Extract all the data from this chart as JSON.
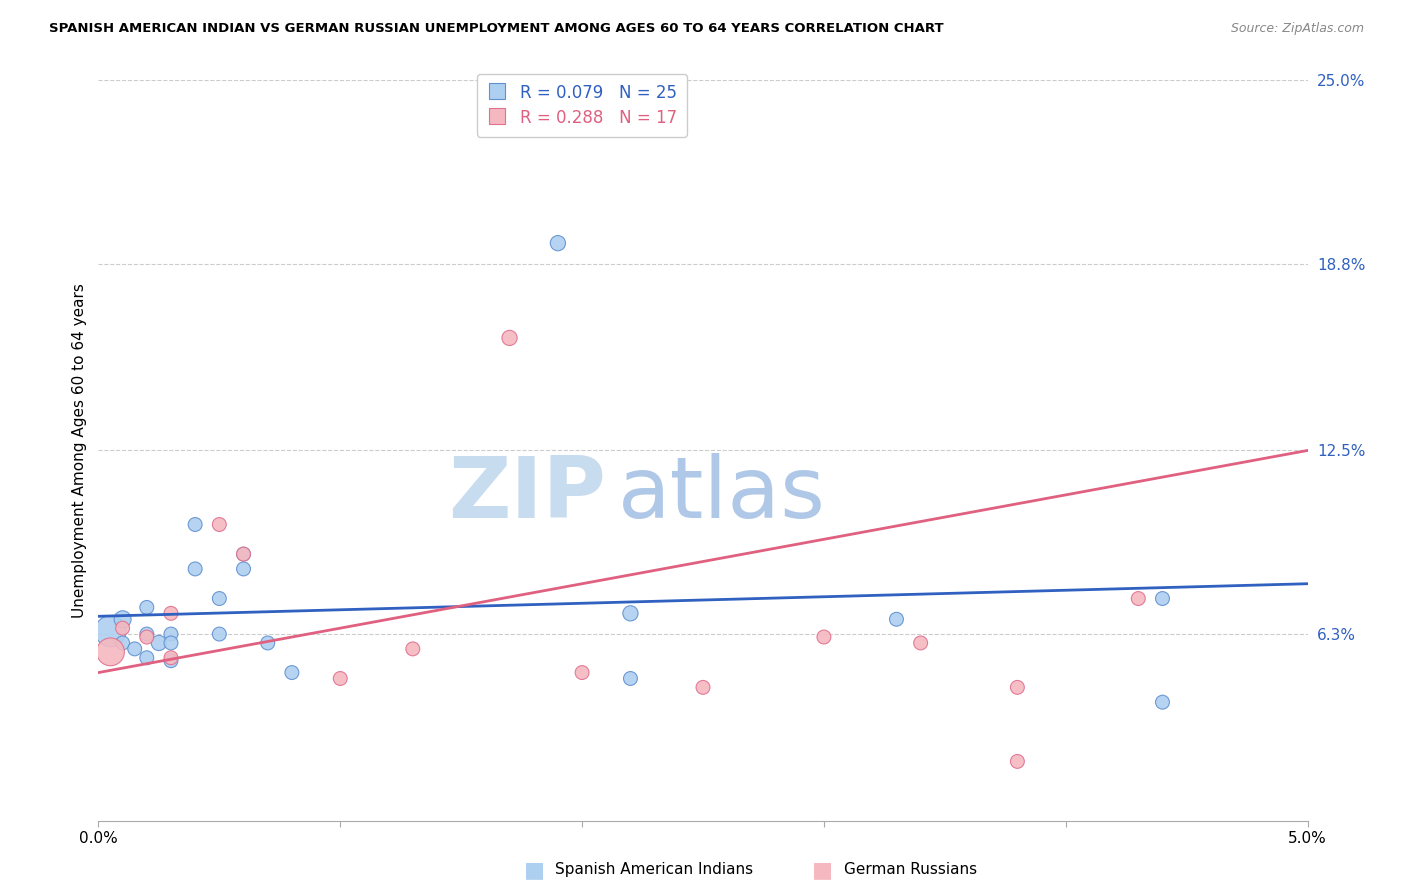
{
  "title": "SPANISH AMERICAN INDIAN VS GERMAN RUSSIAN UNEMPLOYMENT AMONG AGES 60 TO 64 YEARS CORRELATION CHART",
  "source": "Source: ZipAtlas.com",
  "ylabel": "Unemployment Among Ages 60 to 64 years",
  "xlim": [
    0.0,
    0.05
  ],
  "ylim": [
    0.0,
    0.25
  ],
  "xlabel_ticks": [
    0.0,
    0.01,
    0.02,
    0.03,
    0.04,
    0.05
  ],
  "xlabel_tick_labels": [
    "0.0%",
    "",
    "",
    "",
    "",
    "5.0%"
  ],
  "right_ytick_labels": [
    "6.3%",
    "12.5%",
    "18.8%",
    "25.0%"
  ],
  "right_ytick_values": [
    0.063,
    0.125,
    0.188,
    0.25
  ],
  "blue_R": 0.079,
  "blue_N": 25,
  "pink_R": 0.288,
  "pink_N": 17,
  "blue_scatter_x": [
    0.0005,
    0.001,
    0.001,
    0.0015,
    0.002,
    0.002,
    0.002,
    0.0025,
    0.003,
    0.003,
    0.003,
    0.004,
    0.004,
    0.005,
    0.005,
    0.006,
    0.006,
    0.007,
    0.008,
    0.019,
    0.022,
    0.022,
    0.033,
    0.044,
    0.044
  ],
  "blue_scatter_y": [
    0.064,
    0.068,
    0.06,
    0.058,
    0.072,
    0.063,
    0.055,
    0.06,
    0.054,
    0.063,
    0.06,
    0.085,
    0.1,
    0.063,
    0.075,
    0.09,
    0.085,
    0.06,
    0.05,
    0.195,
    0.07,
    0.048,
    0.068,
    0.075,
    0.04
  ],
  "blue_scatter_size": [
    500,
    150,
    100,
    100,
    100,
    100,
    100,
    120,
    100,
    100,
    100,
    100,
    100,
    100,
    100,
    100,
    100,
    100,
    100,
    120,
    120,
    100,
    100,
    100,
    100
  ],
  "pink_scatter_x": [
    0.0005,
    0.001,
    0.002,
    0.003,
    0.003,
    0.005,
    0.006,
    0.01,
    0.013,
    0.017,
    0.02,
    0.025,
    0.03,
    0.034,
    0.038,
    0.038,
    0.043
  ],
  "pink_scatter_y": [
    0.057,
    0.065,
    0.062,
    0.07,
    0.055,
    0.1,
    0.09,
    0.048,
    0.058,
    0.163,
    0.05,
    0.045,
    0.062,
    0.06,
    0.045,
    0.02,
    0.075
  ],
  "pink_scatter_size": [
    400,
    100,
    100,
    100,
    100,
    100,
    100,
    100,
    100,
    120,
    100,
    100,
    100,
    100,
    100,
    100,
    100
  ],
  "blue_line_x": [
    0.0,
    0.05
  ],
  "blue_line_y": [
    0.069,
    0.08
  ],
  "pink_line_x": [
    0.0,
    0.05
  ],
  "pink_line_y": [
    0.05,
    0.125
  ],
  "watermark_zip": "ZIP",
  "watermark_atlas": "atlas",
  "blue_color": "#AED0F0",
  "pink_color": "#F5B8C0",
  "blue_edge_color": "#6090D0",
  "pink_edge_color": "#E07090",
  "blue_line_color": "#3060C0",
  "pink_line_color": "#E06080",
  "grid_color": "#CCCCCC",
  "watermark_zip_color": "#C8DCF0",
  "watermark_atlas_color": "#B0C8E8"
}
